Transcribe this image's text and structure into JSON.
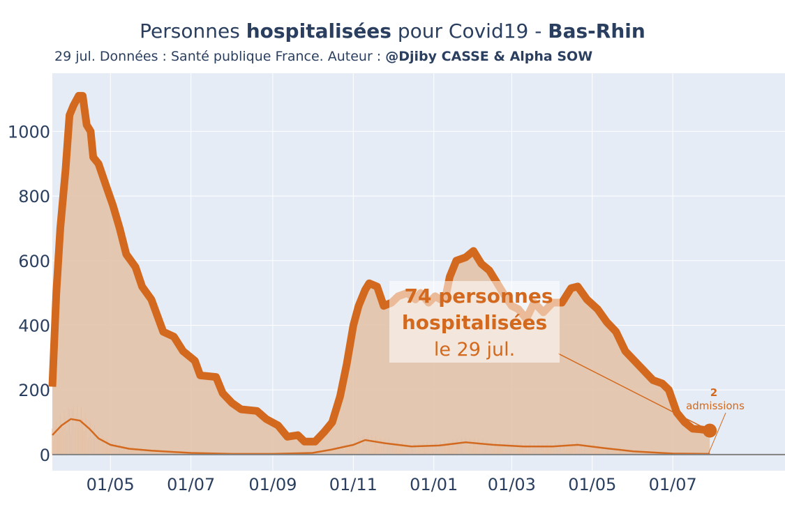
{
  "header": {
    "title_pre": "Personnes ",
    "title_bold": "hospitalisées",
    "title_mid": " pour Covid19 - ",
    "title_region": "Bas-Rhin",
    "subtitle_pre": "29 jul. Données : Santé publique France. Auteur : ",
    "subtitle_author": "@Djiby CASSE & Alpha SOW"
  },
  "colors": {
    "main_line": "#d2691e",
    "fill": "#e3c3aa",
    "plot_bg": "#e5ecf6",
    "grid": "#ffffff",
    "text": "#2a3f5f"
  },
  "annotation": {
    "line1": "74 personnes",
    "line2": "hospitalisées",
    "line3": "le 29 jul.",
    "admissions_value": "2",
    "admissions_label": "admissions"
  },
  "chart_data": {
    "type": "area",
    "x_start": "2020-03-18",
    "x_end": "2021-07-29",
    "x_range": [
      "2020-03-18",
      "2021-09-24"
    ],
    "ylim": [
      -50,
      1180
    ],
    "yticks": [
      0,
      200,
      400,
      600,
      800,
      1000
    ],
    "yticklabels": [
      "0",
      "200",
      "400",
      "600",
      "800",
      "1000"
    ],
    "xticks": [
      "2020-05-01",
      "2020-07-01",
      "2020-09-01",
      "2020-11-01",
      "2021-01-01",
      "2021-03-01",
      "2021-05-01",
      "2021-07-01"
    ],
    "xticklabels": [
      "01/05",
      "01/07",
      "01/09",
      "01/11",
      "01/01",
      "01/03",
      "01/05",
      "01/07"
    ],
    "grid": true,
    "series": [
      {
        "role": "hospitalisations",
        "style": "thick line with shaded area",
        "points": [
          [
            "2020-03-18",
            210
          ],
          [
            "2020-03-21",
            500
          ],
          [
            "2020-03-24",
            700
          ],
          [
            "2020-03-28",
            880
          ],
          [
            "2020-03-31",
            1050
          ],
          [
            "2020-04-03",
            1080
          ],
          [
            "2020-04-07",
            1110
          ],
          [
            "2020-04-10",
            1110
          ],
          [
            "2020-04-13",
            1020
          ],
          [
            "2020-04-16",
            1000
          ],
          [
            "2020-04-18",
            920
          ],
          [
            "2020-04-22",
            900
          ],
          [
            "2020-04-27",
            840
          ],
          [
            "2020-05-03",
            770
          ],
          [
            "2020-05-08",
            700
          ],
          [
            "2020-05-13",
            620
          ],
          [
            "2020-05-20",
            580
          ],
          [
            "2020-05-25",
            520
          ],
          [
            "2020-06-01",
            480
          ],
          [
            "2020-06-10",
            380
          ],
          [
            "2020-06-18",
            365
          ],
          [
            "2020-06-25",
            320
          ],
          [
            "2020-07-04",
            290
          ],
          [
            "2020-07-08",
            245
          ],
          [
            "2020-07-20",
            240
          ],
          [
            "2020-07-25",
            190
          ],
          [
            "2020-08-01",
            160
          ],
          [
            "2020-08-08",
            140
          ],
          [
            "2020-08-20",
            135
          ],
          [
            "2020-08-27",
            110
          ],
          [
            "2020-09-05",
            90
          ],
          [
            "2020-09-12",
            55
          ],
          [
            "2020-09-20",
            60
          ],
          [
            "2020-09-25",
            40
          ],
          [
            "2020-10-03",
            40
          ],
          [
            "2020-10-10",
            70
          ],
          [
            "2020-10-16",
            100
          ],
          [
            "2020-10-22",
            180
          ],
          [
            "2020-10-27",
            280
          ],
          [
            "2020-11-01",
            400
          ],
          [
            "2020-11-05",
            460
          ],
          [
            "2020-11-10",
            510
          ],
          [
            "2020-11-13",
            530
          ],
          [
            "2020-11-19",
            520
          ],
          [
            "2020-11-24",
            460
          ],
          [
            "2020-11-30",
            470
          ],
          [
            "2020-12-05",
            490
          ],
          [
            "2020-12-12",
            500
          ],
          [
            "2020-12-18",
            480
          ],
          [
            "2020-12-22",
            500
          ],
          [
            "2020-12-28",
            470
          ],
          [
            "2021-01-02",
            490
          ],
          [
            "2021-01-06",
            480
          ],
          [
            "2021-01-10",
            490
          ],
          [
            "2021-01-13",
            550
          ],
          [
            "2021-01-18",
            600
          ],
          [
            "2021-01-25",
            610
          ],
          [
            "2021-01-31",
            630
          ],
          [
            "2021-02-06",
            590
          ],
          [
            "2021-02-12",
            570
          ],
          [
            "2021-02-18",
            530
          ],
          [
            "2021-02-24",
            490
          ],
          [
            "2021-03-01",
            460
          ],
          [
            "2021-03-06",
            450
          ],
          [
            "2021-03-12",
            420
          ],
          [
            "2021-03-18",
            470
          ],
          [
            "2021-03-25",
            440
          ],
          [
            "2021-04-01",
            470
          ],
          [
            "2021-04-08",
            470
          ],
          [
            "2021-04-15",
            515
          ],
          [
            "2021-04-20",
            520
          ],
          [
            "2021-04-27",
            480
          ],
          [
            "2021-05-05",
            450
          ],
          [
            "2021-05-12",
            410
          ],
          [
            "2021-05-19",
            380
          ],
          [
            "2021-05-26",
            320
          ],
          [
            "2021-06-02",
            290
          ],
          [
            "2021-06-09",
            260
          ],
          [
            "2021-06-16",
            230
          ],
          [
            "2021-06-23",
            220
          ],
          [
            "2021-06-28",
            200
          ],
          [
            "2021-07-04",
            130
          ],
          [
            "2021-07-10",
            100
          ],
          [
            "2021-07-16",
            80
          ],
          [
            "2021-07-22",
            78
          ],
          [
            "2021-07-29",
            74
          ]
        ]
      },
      {
        "role": "admissions",
        "style": "thin line",
        "points": [
          [
            "2020-03-18",
            60
          ],
          [
            "2020-03-25",
            90
          ],
          [
            "2020-04-01",
            110
          ],
          [
            "2020-04-08",
            105
          ],
          [
            "2020-04-15",
            80
          ],
          [
            "2020-04-22",
            50
          ],
          [
            "2020-05-01",
            30
          ],
          [
            "2020-05-15",
            18
          ],
          [
            "2020-06-01",
            12
          ],
          [
            "2020-07-01",
            5
          ],
          [
            "2020-08-01",
            2
          ],
          [
            "2020-09-01",
            2
          ],
          [
            "2020-10-01",
            5
          ],
          [
            "2020-10-15",
            15
          ],
          [
            "2020-11-01",
            30
          ],
          [
            "2020-11-10",
            45
          ],
          [
            "2020-11-25",
            35
          ],
          [
            "2020-12-15",
            25
          ],
          [
            "2021-01-05",
            28
          ],
          [
            "2021-01-25",
            38
          ],
          [
            "2021-02-15",
            30
          ],
          [
            "2021-03-10",
            25
          ],
          [
            "2021-04-01",
            25
          ],
          [
            "2021-04-20",
            30
          ],
          [
            "2021-05-10",
            20
          ],
          [
            "2021-06-01",
            10
          ],
          [
            "2021-07-01",
            3
          ],
          [
            "2021-07-29",
            2
          ]
        ]
      }
    ]
  }
}
